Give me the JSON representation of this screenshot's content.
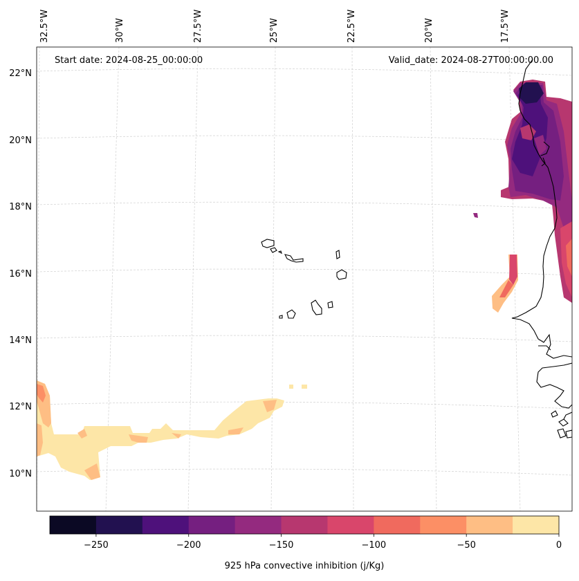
{
  "map": {
    "start_date_text": "Start date: 2024-08-25_00:00:00",
    "valid_date_text": "Valid_date: 2024-08-27T00:00:00.00",
    "lon_labels": [
      "32.5°W",
      "30°W",
      "27.5°W",
      "25°W",
      "22.5°W",
      "20°W",
      "17.5°W"
    ],
    "lat_labels": [
      "22°N",
      "20°N",
      "18°N",
      "16°N",
      "14°N",
      "12°N",
      "10°N"
    ]
  },
  "colorbar": {
    "label": "925 hPa convective inhibition (j/Kg)",
    "ticks": [
      "−250",
      "−200",
      "−150",
      "−100",
      "−50",
      "0"
    ],
    "levels": [
      -275,
      -250,
      -225,
      -200,
      -175,
      -150,
      -125,
      -100,
      -75,
      -50,
      -25,
      0
    ],
    "colors": [
      "#0b0924",
      "#221150",
      "#4e117b",
      "#751f80",
      "#942a7f",
      "#b7376f",
      "#d9466b",
      "#f06a5e",
      "#fc8f65",
      "#febe84",
      "#fde6a7"
    ]
  },
  "colors": {
    "coast": "#000000",
    "grid": "#d0d0d0"
  }
}
